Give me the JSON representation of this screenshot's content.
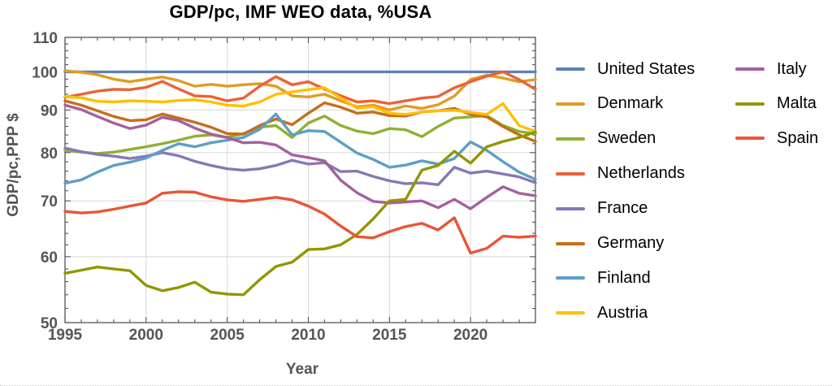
{
  "chart_data": {
    "type": "line",
    "title": "GDP/pc, IMF WEO data, %USA",
    "xlabel": "Year",
    "ylabel": "GDP/pc,PPP $",
    "axis_color": "#555555",
    "grid_color": "#d8d8d8",
    "tick_label_color": "#555555",
    "y_axis": {
      "min": 50,
      "max": 110,
      "scale": "log",
      "major_ticks": [
        50,
        60,
        70,
        80,
        90,
        100,
        110
      ],
      "minor_step": 2
    },
    "x_axis": {
      "min": 1995,
      "max": 2024,
      "major_ticks": [
        1995,
        2000,
        2005,
        2010,
        2015,
        2020
      ],
      "minor_step": 1
    },
    "grid": {
      "x": [
        2000,
        2005,
        2010,
        2015,
        2020
      ],
      "y": [
        60,
        70,
        80,
        90,
        100
      ]
    },
    "legend_position": "right-two-columns",
    "years": [
      1995,
      1996,
      1997,
      1998,
      1999,
      2000,
      2001,
      2002,
      2003,
      2004,
      2005,
      2006,
      2007,
      2008,
      2009,
      2010,
      2011,
      2012,
      2013,
      2014,
      2015,
      2016,
      2017,
      2018,
      2019,
      2020,
      2021,
      2022,
      2023,
      2024
    ],
    "series": [
      {
        "name": "United States",
        "color": "#5E81B5",
        "legend_col": 1,
        "values": [
          100,
          100,
          100,
          100,
          100,
          100,
          100,
          100,
          100,
          100,
          100,
          100,
          100,
          100,
          100,
          100,
          100,
          100,
          100,
          100,
          100,
          100,
          100,
          100,
          100,
          100,
          100,
          100,
          100,
          100
        ]
      },
      {
        "name": "Denmark",
        "color": "#E09C24",
        "legend_col": 1,
        "values": [
          100.3,
          99.9,
          99.2,
          98.0,
          97.3,
          98.0,
          98.6,
          97.6,
          96.1,
          96.6,
          96.1,
          96.5,
          96.8,
          96.1,
          93.6,
          93.3,
          94.0,
          92.3,
          90.8,
          91.2,
          90.0,
          91.0,
          90.4,
          91.3,
          93.5,
          97.9,
          99.1,
          98.3,
          97.3,
          97.9
        ]
      },
      {
        "name": "Sweden",
        "color": "#8FB032",
        "legend_col": 1,
        "values": [
          80.5,
          80.1,
          79.8,
          80.1,
          80.7,
          81.3,
          82.0,
          82.8,
          83.7,
          84.0,
          83.4,
          84.3,
          85.8,
          86.2,
          83.4,
          86.8,
          88.5,
          86.2,
          84.9,
          84.3,
          85.5,
          85.2,
          83.6,
          86.0,
          88.0,
          88.3,
          88.6,
          86.2,
          84.8,
          84.3
        ]
      },
      {
        "name": "Netherlands",
        "color": "#EB6235",
        "legend_col": 1,
        "values": [
          93.2,
          94.0,
          94.8,
          95.3,
          95.2,
          95.8,
          97.4,
          95.4,
          93.6,
          93.4,
          92.3,
          93.0,
          96.1,
          98.7,
          96.5,
          97.3,
          95.4,
          93.6,
          92.0,
          92.3,
          91.6,
          92.3,
          93.0,
          93.4,
          95.7,
          97.3,
          98.8,
          100.0,
          97.9,
          95.3
        ]
      },
      {
        "name": "France",
        "color": "#8778B3",
        "legend_col": 1,
        "values": [
          81.0,
          80.2,
          79.6,
          79.2,
          78.7,
          79.2,
          80.0,
          79.3,
          78.1,
          77.2,
          76.5,
          76.2,
          76.5,
          77.2,
          78.3,
          77.5,
          77.8,
          75.9,
          76.0,
          74.9,
          74.0,
          73.4,
          73.6,
          73.2,
          76.8,
          75.6,
          76.0,
          75.4,
          74.8,
          73.6
        ]
      },
      {
        "name": "Germany",
        "color": "#C56E1A",
        "legend_col": 1,
        "values": [
          92.3,
          91.2,
          89.8,
          88.4,
          87.4,
          87.6,
          89.0,
          88.0,
          87.0,
          85.8,
          84.3,
          84.2,
          86.2,
          87.8,
          86.4,
          89.2,
          91.8,
          90.7,
          89.2,
          89.5,
          88.6,
          88.5,
          89.5,
          89.8,
          90.4,
          88.9,
          88.3,
          86.0,
          84.0,
          82.5
        ]
      },
      {
        "name": "Finland",
        "color": "#5D9EC7",
        "legend_col": 1,
        "values": [
          73.5,
          74.2,
          75.8,
          77.2,
          77.9,
          78.8,
          80.5,
          82.0,
          81.3,
          82.2,
          82.8,
          83.4,
          85.3,
          89.0,
          84.0,
          85.0,
          84.8,
          82.3,
          79.9,
          78.5,
          76.8,
          77.3,
          78.2,
          77.5,
          78.7,
          82.4,
          80.5,
          78.0,
          75.8,
          74.3
        ]
      },
      {
        "name": "Austria",
        "color": "#FFBF00",
        "legend_col": 1,
        "values": [
          93.4,
          93.1,
          92.2,
          92.0,
          92.3,
          92.2,
          92.0,
          92.4,
          92.6,
          92.0,
          91.2,
          91.0,
          92.0,
          94.0,
          94.6,
          95.2,
          95.7,
          93.0,
          90.5,
          90.8,
          89.2,
          88.9,
          89.5,
          89.8,
          89.9,
          89.4,
          88.9,
          91.6,
          86.2,
          84.8
        ]
      },
      {
        "name": "Italy",
        "color": "#A5609D",
        "legend_col": 2,
        "values": [
          91.2,
          90.1,
          88.4,
          86.8,
          85.5,
          86.3,
          88.2,
          87.4,
          85.6,
          84.2,
          83.4,
          82.2,
          82.3,
          81.7,
          79.5,
          78.9,
          78.2,
          74.1,
          71.6,
          69.9,
          69.6,
          69.8,
          70.0,
          68.7,
          70.3,
          68.5,
          70.7,
          72.8,
          71.5,
          71.0
        ]
      },
      {
        "name": "Malta",
        "color": "#929600",
        "legend_col": 2,
        "values": [
          57.3,
          57.8,
          58.3,
          58.0,
          57.7,
          55.4,
          54.6,
          55.1,
          55.9,
          54.4,
          54.1,
          54.0,
          56.3,
          58.4,
          59.1,
          61.2,
          61.3,
          62.0,
          63.8,
          66.6,
          70.0,
          70.3,
          76.2,
          77.2,
          80.3,
          77.7,
          81.3,
          82.5,
          83.4,
          84.7
        ]
      },
      {
        "name": "Spain",
        "color": "#E95536",
        "legend_col": 2,
        "values": [
          68.0,
          67.7,
          67.9,
          68.4,
          69.0,
          69.6,
          71.5,
          71.8,
          71.7,
          70.8,
          70.2,
          69.9,
          70.3,
          70.7,
          70.2,
          69.0,
          67.5,
          65.3,
          63.4,
          63.2,
          64.3,
          65.2,
          65.8,
          64.6,
          66.8,
          60.6,
          61.4,
          63.5,
          63.3,
          63.5
        ]
      }
    ]
  }
}
